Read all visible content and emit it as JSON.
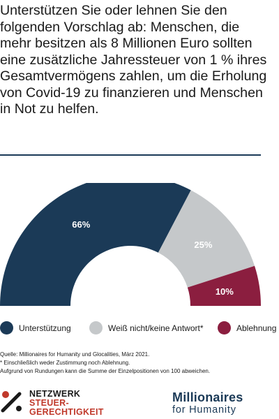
{
  "title": "Unterstützen Sie oder lehnen Sie den folgenden Vorschlag ab: Menschen, die mehr besitzen als 8 Millionen Euro sollten eine zusätzliche Jahressteuer von 1 % ihres Gesamtvermögens zahlen, um die Erholung von Covid-19 zu finanzieren und Menschen in Not zu helfen.",
  "chart_data": {
    "type": "pie",
    "shape": "half-donut",
    "categories": [
      "Unterstützung",
      "Weiß nicht/keine Antwort*",
      "Ablehnung"
    ],
    "values": [
      66,
      25,
      10
    ],
    "labels": [
      "66%",
      "25%",
      "10%"
    ],
    "colors": [
      "#1b3a57",
      "#c5c8ca",
      "#8b1e3f"
    ],
    "legend": "bottom"
  },
  "source": {
    "line1": "Quelle: Millionaires for Humanity und Glocalities, März 2021.",
    "line2": "* Einschließlich weder Zustimmung noch Ablehnung.",
    "line3": "Aufgrund von Rundungen kann die Summe der Einzelpositionen von 100 abweichen."
  },
  "logos": {
    "left": {
      "line1": "NETZWERK",
      "line2": "STEUER-",
      "line3": "GERECHTIGKEIT"
    },
    "right": {
      "line1": "Millionaires",
      "line2": "for Humanity"
    }
  }
}
